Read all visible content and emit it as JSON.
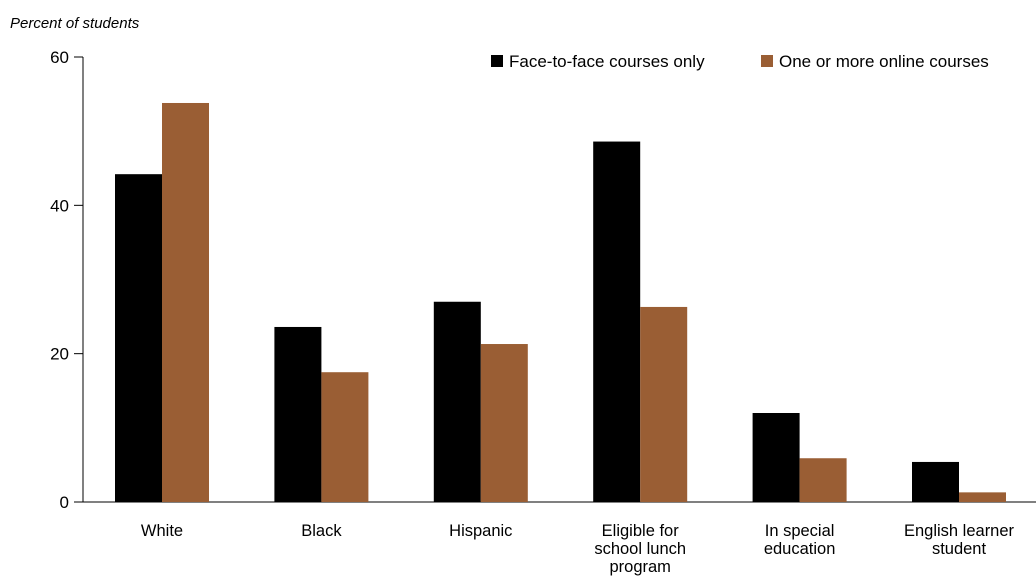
{
  "chart_data": {
    "type": "bar",
    "ylabel": "Percent of students",
    "ylim": [
      0,
      60
    ],
    "yticks": [
      0,
      20,
      40,
      60
    ],
    "categories": [
      [
        "White"
      ],
      [
        "Black"
      ],
      [
        "Hispanic"
      ],
      [
        "Eligible for",
        "school lunch",
        "program"
      ],
      [
        "In special",
        "education"
      ],
      [
        "English learner",
        "student"
      ]
    ],
    "series": [
      {
        "name": "Face-to-face courses only",
        "color": "#000000",
        "values": [
          44.2,
          23.6,
          27.0,
          48.6,
          12.0,
          5.4
        ]
      },
      {
        "name": "One or more online courses",
        "color": "#9a5e34",
        "values": [
          53.8,
          17.5,
          21.3,
          26.3,
          5.9,
          1.3
        ]
      }
    ],
    "legend": "top-right",
    "grid": false
  }
}
